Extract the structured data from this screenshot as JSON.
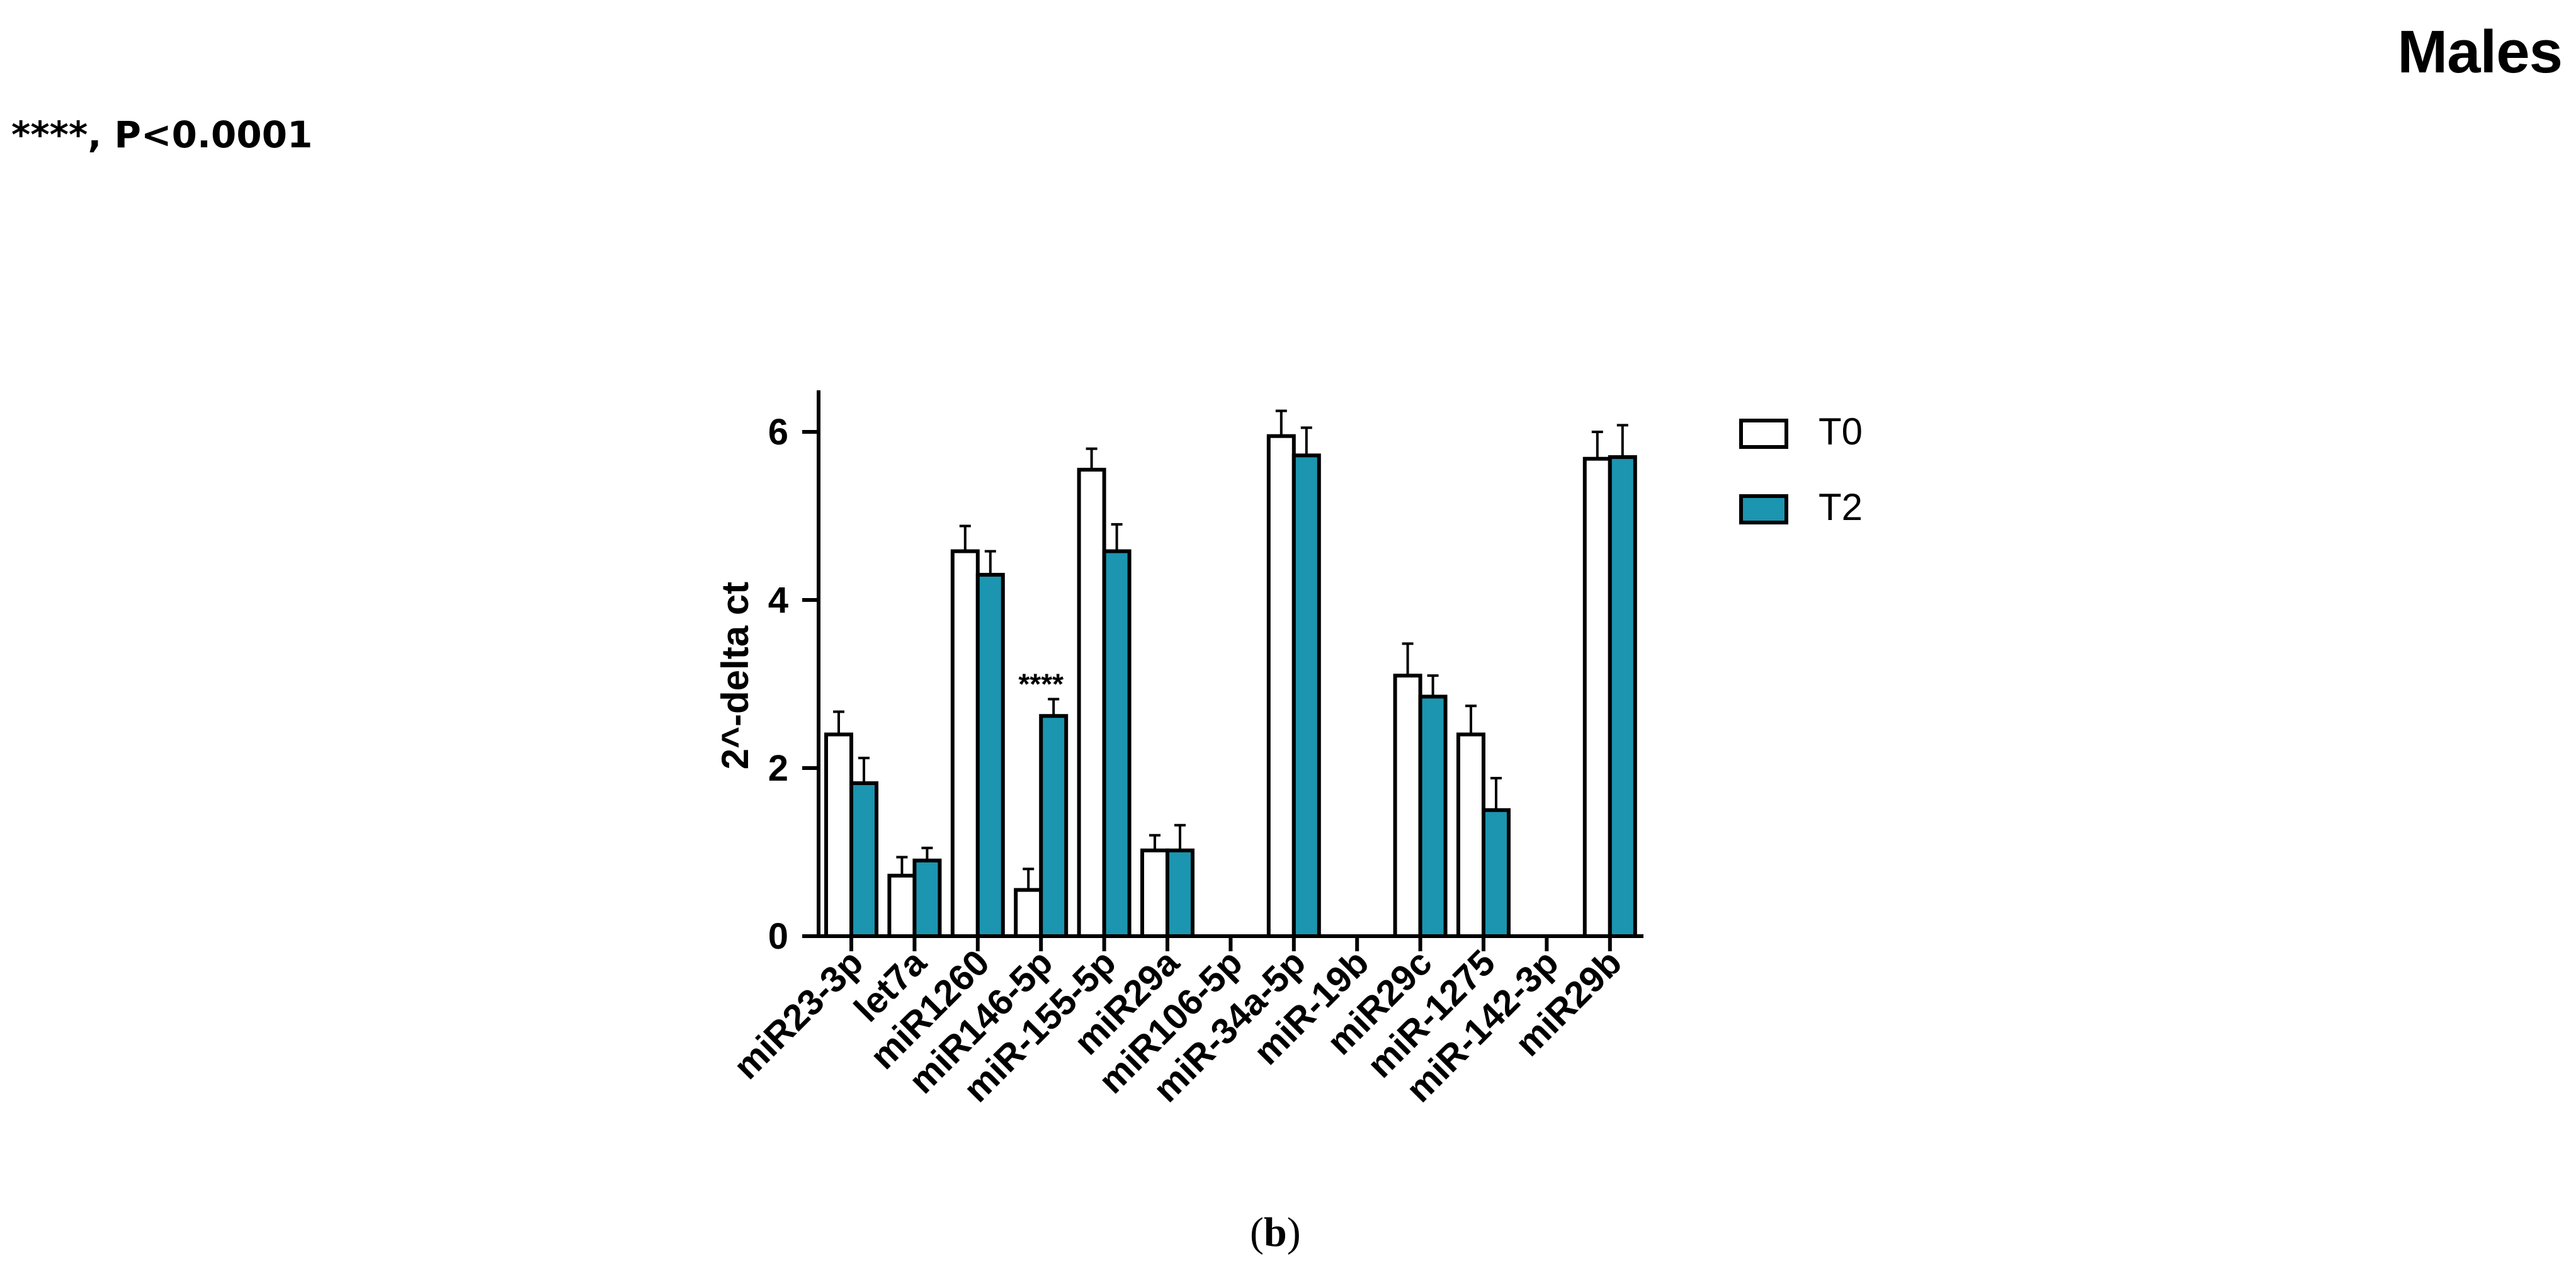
{
  "panel_title": "Males",
  "significance_note": "****, P<0.0001",
  "panel_label": {
    "open": "(",
    "letter": "b",
    "close": ")"
  },
  "colors": {
    "T0": "#ffffff",
    "T2": "#1b95b0",
    "stroke": "#000000"
  },
  "chart_data": {
    "type": "bar",
    "title": "",
    "xlabel": "",
    "ylabel": "2^-delta ct",
    "ylim": [
      0,
      6.5
    ],
    "yticks": [
      0,
      2,
      4,
      6
    ],
    "legend_position": "right",
    "categories": [
      "miR23-3p",
      "let7a",
      "miR1260",
      "miR146-5p",
      "miR-155-5p",
      "miR29a",
      "miR106-5p",
      "miR-34a-5p",
      "miR-19b",
      "miR29c",
      "miR-1275",
      "miR-142-3p",
      "miR29b"
    ],
    "series": [
      {
        "name": "T0",
        "values": [
          2.4,
          0.72,
          4.58,
          0.55,
          5.55,
          1.02,
          0,
          5.95,
          0,
          3.1,
          2.4,
          0,
          5.68
        ],
        "errors": [
          0.27,
          0.22,
          0.3,
          0.25,
          0.25,
          0.18,
          0,
          0.3,
          0,
          0.38,
          0.34,
          0,
          0.32
        ]
      },
      {
        "name": "T2",
        "values": [
          1.82,
          0.9,
          4.3,
          2.62,
          4.58,
          1.02,
          0,
          5.72,
          0,
          2.85,
          1.5,
          0,
          5.7
        ],
        "errors": [
          0.3,
          0.15,
          0.28,
          0.2,
          0.32,
          0.3,
          0,
          0.33,
          0,
          0.25,
          0.38,
          0,
          0.38
        ]
      }
    ],
    "annotations": [
      {
        "category": "miR146-5p",
        "text": "****"
      }
    ]
  }
}
